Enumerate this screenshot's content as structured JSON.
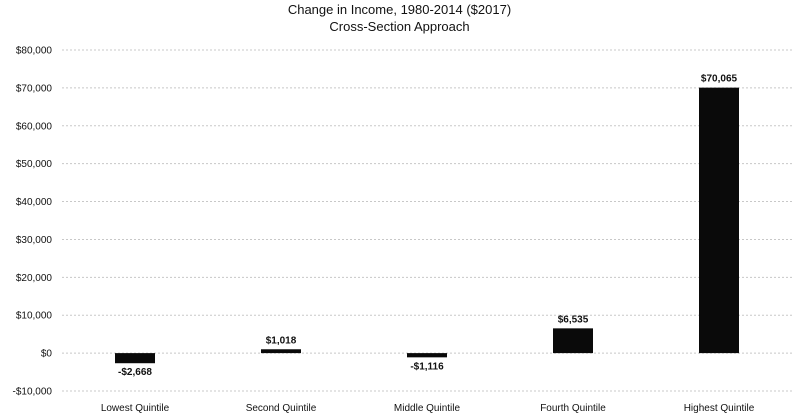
{
  "chart_data": {
    "type": "bar",
    "title": "Change in Income, 1980-2014 ($2017)",
    "subtitle": "Cross-Section Approach",
    "categories": [
      "Lowest Quintile",
      "Second Quintile",
      "Middle Quintile",
      "Fourth Quintile",
      "Highest Quintile"
    ],
    "values": [
      -2668,
      1018,
      -1116,
      6535,
      70065
    ],
    "data_labels": [
      "-$2,668",
      "$1,018",
      "-$1,116",
      "$6,535",
      "$70,065"
    ],
    "ylim": [
      -10000,
      80000
    ],
    "yticks": [
      -10000,
      0,
      10000,
      20000,
      30000,
      40000,
      50000,
      60000,
      70000,
      80000
    ],
    "ytick_labels": [
      "-$10,000",
      "$0",
      "$10,000",
      "$20,000",
      "$30,000",
      "$40,000",
      "$50,000",
      "$60,000",
      "$70,000",
      "$80,000"
    ],
    "grid": true,
    "legend": "none",
    "bar_color": "#0a0a0a"
  }
}
